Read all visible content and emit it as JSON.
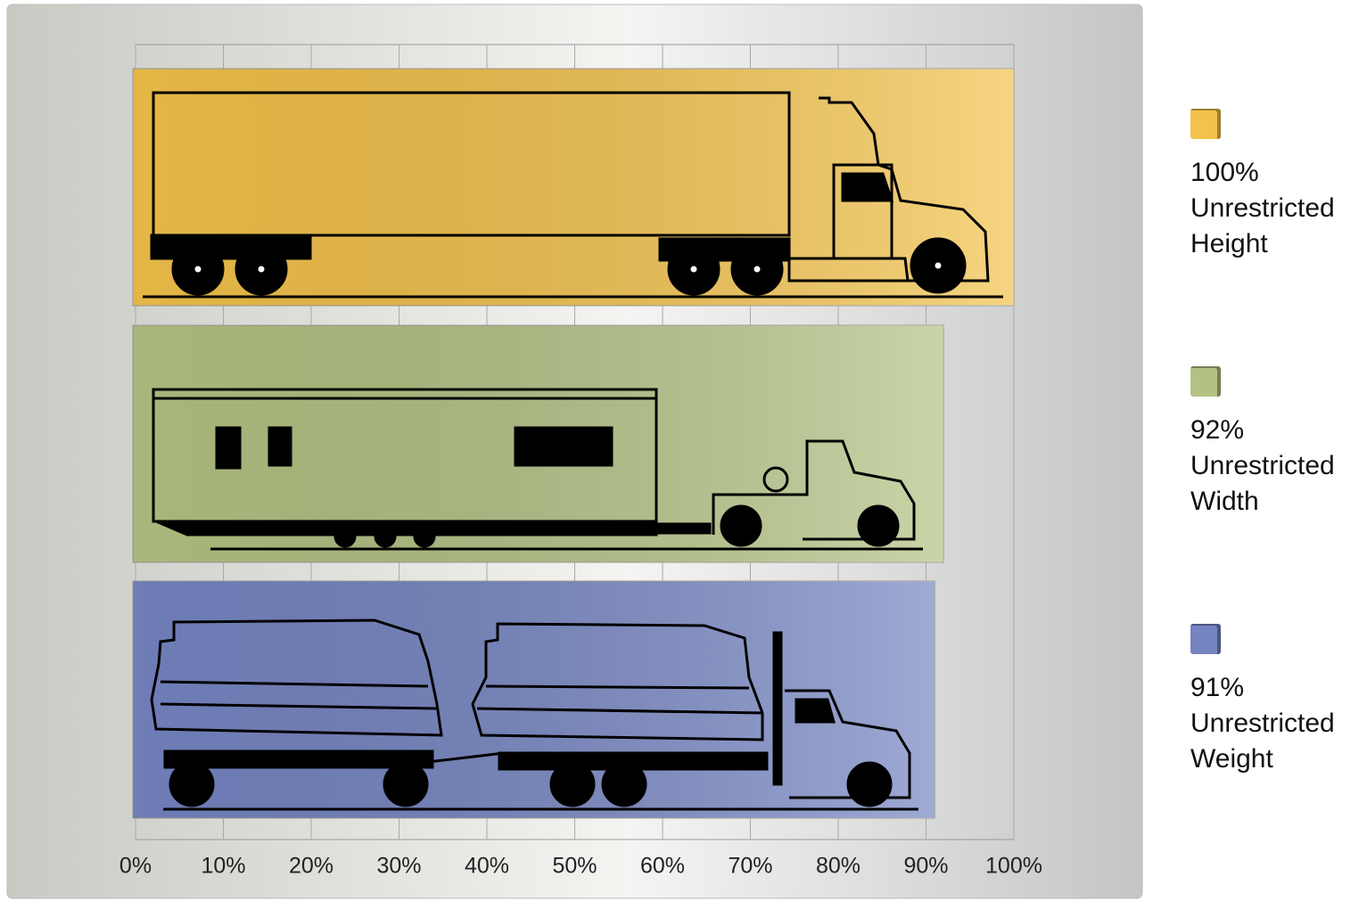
{
  "chart_data": {
    "type": "bar",
    "orientation": "horizontal",
    "series": [
      {
        "name": "100% Unrestricted Height",
        "color": "#f3c24a",
        "values": [
          100
        ]
      },
      {
        "name": "92% Unrestricted Width",
        "color": "#b3c283",
        "values": [
          92
        ]
      },
      {
        "name": "91% Unrestricted Weight",
        "color": "#7585c2",
        "values": [
          91
        ]
      }
    ],
    "xlim": [
      0,
      100
    ],
    "xticks": [
      {
        "value": 0,
        "label": "0%"
      },
      {
        "value": 10,
        "label": "10%"
      },
      {
        "value": 20,
        "label": "20%"
      },
      {
        "value": 30,
        "label": "30%"
      },
      {
        "value": 40,
        "label": "40%"
      },
      {
        "value": 50,
        "label": "50%"
      },
      {
        "value": 60,
        "label": "60%"
      },
      {
        "value": 70,
        "label": "70%"
      },
      {
        "value": 80,
        "label": "80%"
      },
      {
        "value": 90,
        "label": "90%"
      },
      {
        "value": 100,
        "label": "100%"
      }
    ],
    "grid": true
  }
}
